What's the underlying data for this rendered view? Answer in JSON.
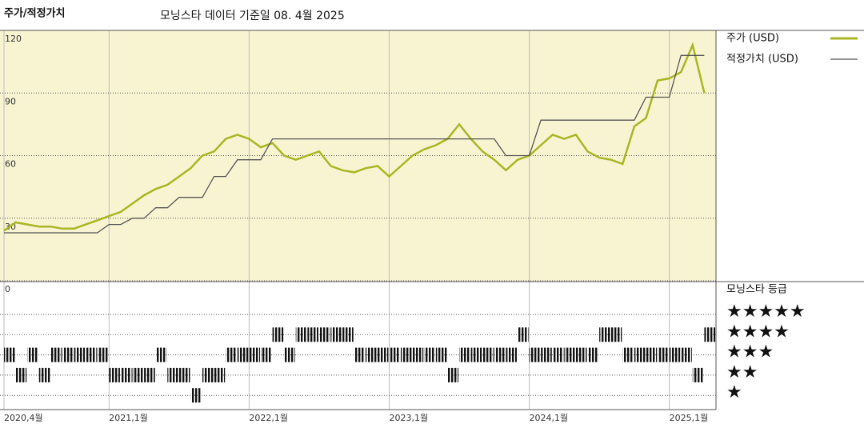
{
  "header": {
    "label": "주가/적정가치",
    "title": "모닝스타 데이터 기준일 08. 4월 2025"
  },
  "chart_data": {
    "type": "line",
    "x": [
      "2020-04",
      "2020-05",
      "2020-06",
      "2020-07",
      "2020-08",
      "2020-09",
      "2020-10",
      "2020-11",
      "2020-12",
      "2021-01",
      "2021-02",
      "2021-03",
      "2021-04",
      "2021-05",
      "2021-06",
      "2021-07",
      "2021-08",
      "2021-09",
      "2021-10",
      "2021-11",
      "2021-12",
      "2022-01",
      "2022-02",
      "2022-03",
      "2022-04",
      "2022-05",
      "2022-06",
      "2022-07",
      "2022-08",
      "2022-09",
      "2022-10",
      "2022-11",
      "2022-12",
      "2023-01",
      "2023-02",
      "2023-03",
      "2023-04",
      "2023-05",
      "2023-06",
      "2023-07",
      "2023-08",
      "2023-09",
      "2023-10",
      "2023-11",
      "2023-12",
      "2024-01",
      "2024-02",
      "2024-03",
      "2024-04",
      "2024-05",
      "2024-06",
      "2024-07",
      "2024-08",
      "2024-09",
      "2024-10",
      "2024-11",
      "2024-12",
      "2025-01",
      "2025-02",
      "2025-03",
      "2025-04"
    ],
    "series": [
      {
        "name": "주가 (USD)",
        "color": "#aab523",
        "values": [
          24,
          28,
          27,
          26,
          26,
          25,
          25,
          27,
          29,
          31,
          33,
          37,
          41,
          44,
          46,
          50,
          54,
          60,
          62,
          68,
          70,
          68,
          64,
          66,
          60,
          58,
          60,
          62,
          55,
          53,
          52,
          54,
          55,
          50,
          55,
          60,
          63,
          65,
          68,
          75,
          68,
          62,
          58,
          53,
          58,
          60,
          65,
          70,
          68,
          70,
          62,
          59,
          58,
          56,
          74,
          78,
          96,
          97,
          100,
          113,
          90
        ]
      },
      {
        "name": "적정가치 (USD)",
        "color": "#555555",
        "values": [
          23,
          23,
          23,
          23,
          23,
          23,
          23,
          23,
          23,
          27,
          27,
          30,
          30,
          35,
          35,
          40,
          40,
          40,
          50,
          50,
          58,
          58,
          58,
          68,
          68,
          68,
          68,
          68,
          68,
          68,
          68,
          68,
          68,
          68,
          68,
          68,
          68,
          68,
          68,
          68,
          68,
          68,
          68,
          60,
          60,
          60,
          77,
          77,
          77,
          77,
          77,
          77,
          77,
          77,
          77,
          88,
          88,
          88,
          108,
          108,
          108
        ]
      }
    ],
    "ylim": [
      0,
      120
    ],
    "yticks": [
      0,
      30,
      60,
      90,
      120
    ],
    "xlim": [
      "2020-04",
      "2025-05"
    ],
    "xticks": [
      {
        "value": "2020-04",
        "label": "2020,4월"
      },
      {
        "value": "2021-01",
        "label": "2021,1월"
      },
      {
        "value": "2022-01",
        "label": "2022,1월"
      },
      {
        "value": "2023-01",
        "label": "2023,1월"
      },
      {
        "value": "2024-01",
        "label": "2024,1월"
      },
      {
        "value": "2025-01",
        "label": "2025,1월"
      }
    ],
    "grid": true,
    "background": "#f8f4d2",
    "rating": {
      "title": "모닝스타 등급",
      "levels": [
        {
          "value": 5,
          "label": "★★★★★"
        },
        {
          "value": 4,
          "label": "★★★★"
        },
        {
          "value": 3,
          "label": "★★★"
        },
        {
          "value": 2,
          "label": "★★"
        },
        {
          "value": 1,
          "label": "★"
        }
      ],
      "values": [
        3,
        2,
        3,
        2,
        3,
        3,
        3,
        3,
        3,
        2,
        2,
        2,
        2,
        3,
        2,
        2,
        1,
        2,
        2,
        3,
        3,
        3,
        3,
        4,
        3,
        4,
        4,
        4,
        4,
        4,
        3,
        3,
        3,
        3,
        3,
        3,
        3,
        3,
        2,
        3,
        3,
        3,
        3,
        3,
        4,
        3,
        3,
        3,
        3,
        3,
        3,
        4,
        4,
        3,
        3,
        3,
        3,
        3,
        3,
        2,
        4
      ]
    }
  }
}
